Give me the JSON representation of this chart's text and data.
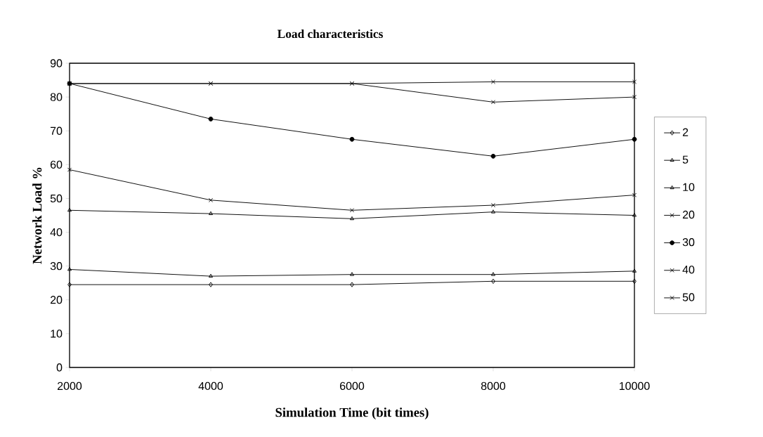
{
  "chart_data": {
    "type": "line",
    "title": "Load characteristics",
    "xlabel": "Simulation Time (bit times)",
    "ylabel": "Network Load %",
    "x": [
      2000,
      4000,
      6000,
      8000,
      10000
    ],
    "xlim": [
      2000,
      10000
    ],
    "xticks": [
      2000,
      4000,
      6000,
      8000,
      10000
    ],
    "ylim": [
      0,
      90
    ],
    "yticks": [
      0,
      10,
      20,
      30,
      40,
      50,
      60,
      70,
      80,
      90
    ],
    "grid": false,
    "legend": "right",
    "line_style": "solid",
    "series": [
      {
        "name": "2",
        "color": "#000000",
        "marker": "diamond",
        "values": [
          24.5,
          24.5,
          24.5,
          25.5,
          25.5
        ]
      },
      {
        "name": "5",
        "color": "#000000",
        "marker": "triangle",
        "values": [
          29,
          27,
          27.5,
          27.5,
          28.5
        ]
      },
      {
        "name": "10",
        "color": "#000000",
        "marker": "triangle",
        "values": [
          46.5,
          45.5,
          44,
          46,
          45
        ]
      },
      {
        "name": "20",
        "color": "#000000",
        "marker": "cross",
        "values": [
          58.5,
          49.5,
          46.5,
          48,
          51
        ]
      },
      {
        "name": "30",
        "color": "#000000",
        "marker": "circle",
        "values": [
          84,
          73.5,
          67.5,
          62.5,
          67.5
        ]
      },
      {
        "name": "40",
        "color": "#000000",
        "marker": "cross",
        "values": [
          84,
          84,
          84,
          78.5,
          80
        ]
      },
      {
        "name": "50",
        "color": "#000000",
        "marker": "cross",
        "values": [
          84,
          84,
          84,
          84.5,
          84.5
        ]
      }
    ]
  }
}
